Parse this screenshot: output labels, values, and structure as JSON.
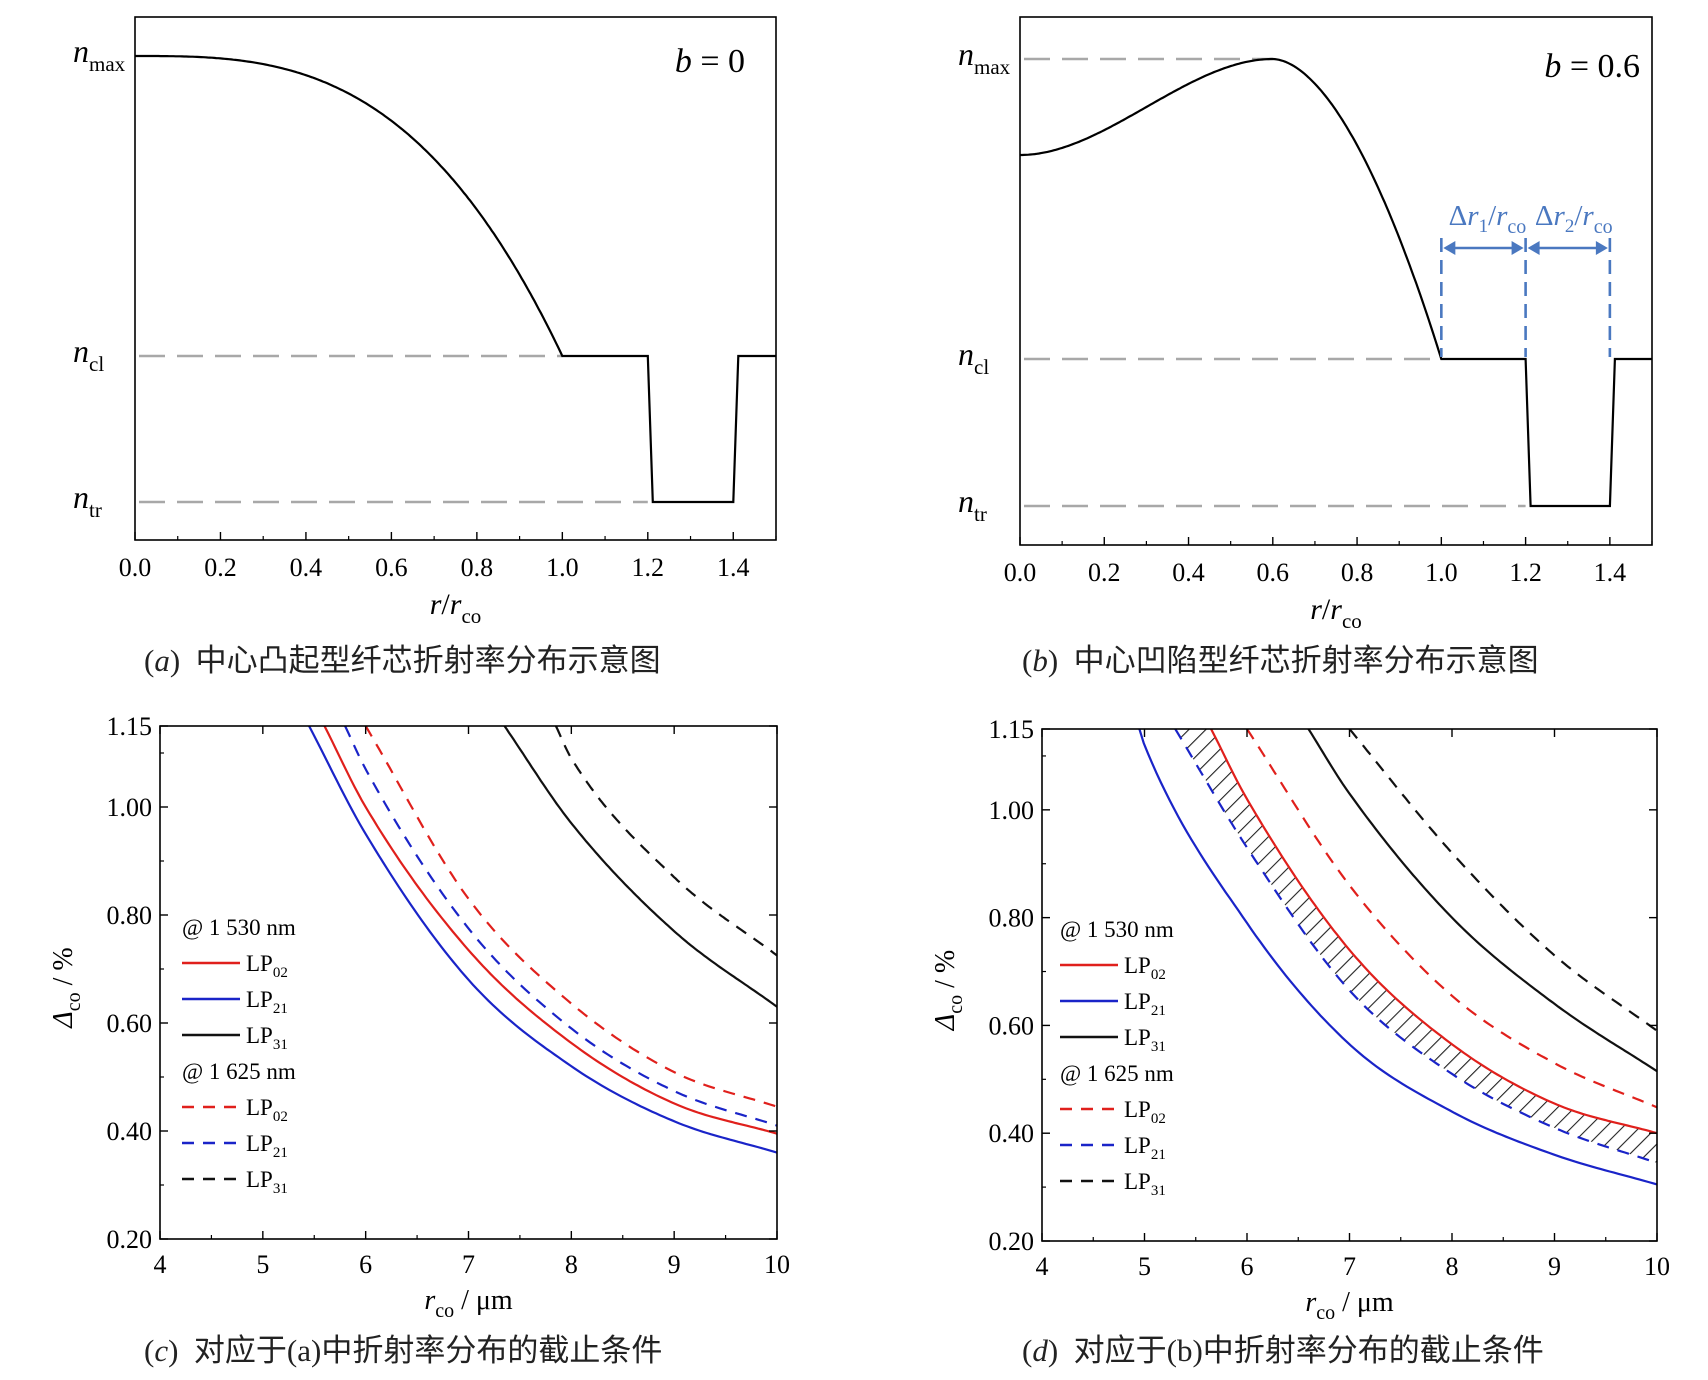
{
  "captions": {
    "a": {
      "label": "a",
      "text": "中心凸起型纤芯折射率分布示意图"
    },
    "b": {
      "label": "b",
      "text": "中心凹陷型纤芯折射率分布示意图"
    },
    "c": {
      "label": "c",
      "text": "对应于(a)中折射率分布的截止条件"
    },
    "d": {
      "label": "d",
      "text": "对应于(b)中折射率分布的截止条件"
    }
  },
  "colors": {
    "red": "#e0201c",
    "blue": "#1a24c8",
    "black": "#111111",
    "grid_gray": "#a8a8a8",
    "annot_blue": "#4a78c0"
  },
  "chart_data": [
    {
      "id": "a",
      "type": "line",
      "annotation": "b = 0",
      "b_value": 0,
      "xlabel": "r/r_co",
      "xlim": [
        0,
        1.5
      ],
      "xticks": [
        "0.0",
        "0.2",
        "0.4",
        "0.6",
        "0.8",
        "1.0",
        "1.2",
        "1.4"
      ],
      "y_levels": [
        {
          "label": "n_max",
          "value": 1.0
        },
        {
          "label": "n_cl",
          "value": 0.0
        },
        {
          "label": "n_tr",
          "value": -0.5
        }
      ],
      "profile": {
        "core_radius": 1.0,
        "trench_start": 1.2,
        "trench_end": 1.4,
        "center_value": 1.0,
        "peak_position": 0.0,
        "peak_value": 1.0
      }
    },
    {
      "id": "b",
      "type": "line",
      "annotation": "b = 0.6",
      "b_value": 0.6,
      "xlabel": "r/r_co",
      "xlim": [
        0,
        1.5
      ],
      "xticks": [
        "0.0",
        "0.2",
        "0.4",
        "0.6",
        "0.8",
        "1.0",
        "1.2",
        "1.4"
      ],
      "y_levels": [
        {
          "label": "n_max",
          "value": 1.0
        },
        {
          "label": "n_cl",
          "value": 0.0
        },
        {
          "label": "n_tr",
          "value": -0.5
        }
      ],
      "profile": {
        "core_radius": 1.0,
        "trench_start": 1.2,
        "trench_end": 1.4,
        "center_value": 0.68,
        "peak_position": 0.6,
        "peak_value": 1.0
      },
      "dimension_labels": [
        "Δr1/rco",
        "Δr2/rco"
      ]
    },
    {
      "id": "c",
      "type": "line",
      "xlabel": "r_co / μm",
      "ylabel": "Δ_co / %",
      "xlim": [
        4,
        10
      ],
      "ylim": [
        0.2,
        1.15
      ],
      "xticks": [
        "4",
        "5",
        "6",
        "7",
        "8",
        "9",
        "10"
      ],
      "yticks": [
        "0.20",
        "0.40",
        "0.60",
        "0.80",
        "1.00",
        "1.15"
      ],
      "legend_groups": [
        "@ 1 530 nm",
        "@ 1 625 nm"
      ],
      "series": [
        {
          "name": "LP02",
          "wavelength": "1 530 nm",
          "style": "solid",
          "color": "red",
          "x": [
            5.6,
            6,
            7,
            8,
            9,
            10
          ],
          "y": [
            1.15,
            1.0,
            0.735,
            0.563,
            0.451,
            0.395
          ]
        },
        {
          "name": "LP21",
          "wavelength": "1 530 nm",
          "style": "solid",
          "color": "blue",
          "x": [
            5.45,
            6,
            7,
            8,
            9,
            10
          ],
          "y": [
            1.15,
            0.95,
            0.68,
            0.52,
            0.418,
            0.36
          ]
        },
        {
          "name": "LP31",
          "wavelength": "1 530 nm",
          "style": "solid",
          "color": "black",
          "x": [
            7.35,
            8,
            9,
            10
          ],
          "y": [
            1.15,
            0.97,
            0.77,
            0.63
          ]
        },
        {
          "name": "LP02",
          "wavelength": "1 625 nm",
          "style": "dashed",
          "color": "red",
          "x": [
            6.0,
            7,
            8,
            9,
            10
          ],
          "y": [
            1.15,
            0.83,
            0.636,
            0.509,
            0.445
          ]
        },
        {
          "name": "LP21",
          "wavelength": "1 625 nm",
          "style": "dashed",
          "color": "blue",
          "x": [
            5.8,
            6,
            7,
            8,
            9,
            10
          ],
          "y": [
            1.15,
            1.07,
            0.775,
            0.59,
            0.474,
            0.41
          ]
        },
        {
          "name": "LP31",
          "wavelength": "1 625 nm",
          "style": "dashed",
          "color": "black",
          "x": [
            7.85,
            8,
            9,
            10
          ],
          "y": [
            1.15,
            1.09,
            0.87,
            0.725
          ]
        }
      ]
    },
    {
      "id": "d",
      "type": "line",
      "xlabel": "r_co / μm",
      "ylabel": "Δ_co / %",
      "xlim": [
        4,
        10
      ],
      "ylim": [
        0.2,
        1.15
      ],
      "xticks": [
        "4",
        "5",
        "6",
        "7",
        "8",
        "9",
        "10"
      ],
      "yticks": [
        "0.20",
        "0.40",
        "0.60",
        "0.80",
        "1.00",
        "1.15"
      ],
      "legend_groups": [
        "@ 1 530 nm",
        "@ 1 625 nm"
      ],
      "hatched_region": {
        "between": [
          "LP02 @ 1 530 nm",
          "LP21 @ 1 625 nm"
        ]
      },
      "series": [
        {
          "name": "LP02",
          "wavelength": "1 530 nm",
          "style": "solid",
          "color": "red",
          "x": [
            5.65,
            6,
            7,
            8,
            9,
            10
          ],
          "y": [
            1.15,
            1.02,
            0.74,
            0.565,
            0.455,
            0.4
          ]
        },
        {
          "name": "LP21",
          "wavelength": "1 530 nm",
          "style": "solid",
          "color": "blue",
          "x": [
            4.95,
            5,
            6,
            7,
            8,
            9,
            10
          ],
          "y": [
            1.15,
            1.12,
            0.79,
            0.565,
            0.44,
            0.36,
            0.305
          ]
        },
        {
          "name": "LP31",
          "wavelength": "1 530 nm",
          "style": "solid",
          "color": "black",
          "x": [
            6.6,
            7,
            8,
            9,
            10
          ],
          "y": [
            1.15,
            1.03,
            0.8,
            0.64,
            0.515
          ]
        },
        {
          "name": "LP02",
          "wavelength": "1 625 nm",
          "style": "dashed",
          "color": "red",
          "x": [
            6.0,
            7,
            8,
            9,
            10
          ],
          "y": [
            1.15,
            0.86,
            0.655,
            0.53,
            0.448
          ]
        },
        {
          "name": "LP21",
          "wavelength": "1 625 nm",
          "style": "dashed",
          "color": "blue",
          "x": [
            5.3,
            6,
            7,
            8,
            9,
            10
          ],
          "y": [
            1.15,
            0.93,
            0.665,
            0.51,
            0.41,
            0.345
          ]
        },
        {
          "name": "LP31",
          "wavelength": "1 625 nm",
          "style": "dashed",
          "color": "black",
          "x": [
            7.0,
            8,
            9,
            10
          ],
          "y": [
            1.15,
            0.92,
            0.73,
            0.59
          ]
        }
      ]
    }
  ]
}
